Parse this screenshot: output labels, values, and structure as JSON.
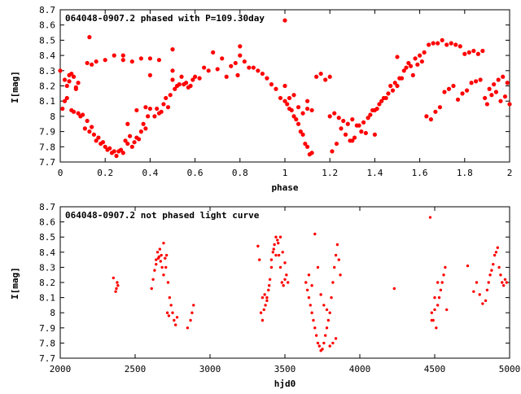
{
  "chart_data": [
    {
      "type": "scatter",
      "title": "064048-0907.2 phased with P=109.30day",
      "xlabel": "phase",
      "ylabel": "I[mag]",
      "xlim": [
        0,
        2
      ],
      "ylim": [
        8.7,
        7.7
      ],
      "y_inverted": true,
      "xticks": [
        0,
        0.2,
        0.4,
        0.6,
        0.8,
        1,
        1.2,
        1.4,
        1.6,
        1.8,
        2
      ],
      "xtick_labels": [
        "0",
        "0.2",
        "0.4",
        "0.6",
        "0.8",
        "1",
        "1.2",
        "1.4",
        "1.6",
        "1.8",
        "2"
      ],
      "yticks": [
        7.7,
        7.8,
        7.9,
        8.0,
        8.1,
        8.2,
        8.3,
        8.4,
        8.5,
        8.6,
        8.7
      ],
      "ytick_labels": [
        "7.7",
        "7.8",
        "7.9",
        "8",
        "8.1",
        "8.2",
        "8.3",
        "8.4",
        "8.5",
        "8.6",
        "8.7"
      ],
      "marker_color": "#ff0000",
      "series": [
        {
          "x": [
            0.0,
            0.01,
            0.02,
            0.03,
            0.04,
            0.05,
            0.06,
            0.07,
            0.08,
            0.09,
            0.02,
            0.04,
            0.06,
            0.08,
            0.03,
            0.05,
            0.07,
            0.1,
            0.11,
            0.12,
            0.13,
            0.14,
            0.15,
            0.16,
            0.17,
            0.18,
            0.19,
            0.2,
            0.21,
            0.22,
            0.23,
            0.24,
            0.25,
            0.26,
            0.27,
            0.28,
            0.29,
            0.3,
            0.31,
            0.32,
            0.33,
            0.34,
            0.35,
            0.36,
            0.37,
            0.38,
            0.39,
            0.4,
            0.12,
            0.14,
            0.16,
            0.2,
            0.24,
            0.28,
            0.32,
            0.36,
            0.4,
            0.44,
            0.13,
            0.34,
            0.38,
            0.42,
            0.43,
            0.44,
            0.45,
            0.46,
            0.47,
            0.48,
            0.49,
            0.5,
            0.51,
            0.52,
            0.53,
            0.54,
            0.55,
            0.56,
            0.57,
            0.58,
            0.59,
            0.6,
            0.62,
            0.64,
            0.66,
            0.68,
            0.7,
            0.72,
            0.74,
            0.76,
            0.78,
            0.8,
            0.79,
            0.82,
            0.84,
            0.86,
            0.88,
            0.9,
            0.92,
            0.94,
            0.96,
            0.98,
            0.5,
            0.5,
            0.4,
            0.28,
            0.3,
            0.8
          ],
          "y": [
            8.3,
            8.05,
            8.1,
            8.2,
            8.27,
            8.04,
            8.03,
            8.18,
            8.02,
            8.0,
            8.24,
            8.23,
            8.26,
            8.22,
            8.12,
            8.28,
            8.19,
            8.01,
            7.92,
            7.97,
            7.9,
            7.93,
            7.88,
            7.84,
            7.86,
            7.82,
            7.83,
            7.8,
            7.78,
            7.79,
            7.76,
            7.77,
            7.74,
            7.77,
            7.78,
            7.76,
            7.84,
            7.82,
            7.87,
            7.8,
            7.83,
            7.86,
            7.85,
            7.9,
            7.95,
            7.92,
            8.0,
            8.05,
            8.35,
            8.34,
            8.36,
            8.37,
            8.4,
            8.37,
            8.36,
            8.38,
            8.38,
            8.37,
            8.52,
            8.04,
            8.06,
            8.0,
            8.05,
            8.02,
            8.03,
            8.08,
            8.12,
            8.06,
            8.14,
            8.24,
            8.18,
            8.2,
            8.21,
            8.26,
            8.21,
            8.22,
            8.19,
            8.2,
            8.24,
            8.26,
            8.25,
            8.32,
            8.3,
            8.42,
            8.31,
            8.38,
            8.26,
            8.33,
            8.35,
            8.46,
            8.27,
            8.36,
            8.32,
            8.32,
            8.3,
            8.28,
            8.25,
            8.21,
            8.18,
            8.12,
            8.44,
            8.3,
            8.27,
            8.4,
            7.95,
            8.4
          ]
        },
        {
          "x": [
            1.0,
            1.01,
            1.02,
            1.03,
            1.04,
            1.05,
            1.06,
            1.07,
            1.08,
            1.09,
            1.1,
            1.11,
            1.12,
            1.0,
            1.02,
            1.04,
            1.06,
            1.08,
            1.1,
            1.12,
            1.14,
            1.16,
            1.18,
            1.2,
            1.22,
            1.24,
            1.26,
            1.28,
            1.3,
            1.32,
            1.34,
            1.36,
            1.38,
            1.4,
            1.42,
            1.44,
            1.46,
            1.48,
            1.5,
            1.52,
            1.54,
            1.56,
            1.58,
            1.6,
            1.62,
            1.64,
            1.66,
            1.68,
            1.7,
            1.72,
            1.74,
            1.76,
            1.78,
            1.8,
            1.82,
            1.84,
            1.86,
            1.88,
            1.9,
            1.92,
            1.94,
            1.96,
            1.98,
            2.0,
            1.21,
            1.23,
            1.25,
            1.27,
            1.29,
            1.31,
            1.33,
            1.35,
            1.37,
            1.39,
            1.41,
            1.43,
            1.45,
            1.47,
            1.49,
            1.51,
            1.53,
            1.55,
            1.57,
            1.59,
            1.61,
            1.63,
            1.65,
            1.67,
            1.69,
            1.71,
            1.73,
            1.75,
            1.77,
            1.79,
            1.81,
            1.83,
            1.85,
            1.87,
            1.89,
            1.91,
            1.93,
            1.95,
            1.97,
            1.99,
            1.0,
            1.1,
            1.2,
            1.3,
            1.4,
            1.5
          ],
          "y": [
            8.63,
            8.08,
            8.05,
            8.04,
            8.0,
            7.98,
            7.95,
            7.9,
            7.88,
            7.82,
            7.8,
            7.75,
            7.76,
            8.1,
            8.12,
            8.14,
            8.06,
            8.02,
            8.05,
            8.04,
            8.26,
            8.28,
            8.24,
            8.26,
            8.02,
            7.99,
            7.97,
            7.95,
            7.98,
            7.94,
            7.9,
            7.89,
            8.01,
            8.04,
            8.08,
            8.12,
            8.15,
            8.17,
            8.2,
            8.25,
            8.32,
            8.33,
            8.38,
            8.4,
            8.42,
            8.47,
            8.48,
            8.48,
            8.5,
            8.47,
            8.48,
            8.47,
            8.46,
            8.41,
            8.42,
            8.43,
            8.41,
            8.43,
            8.08,
            8.14,
            8.16,
            8.1,
            8.13,
            8.08,
            7.77,
            7.82,
            7.92,
            7.88,
            7.84,
            7.86,
            7.94,
            7.96,
            7.99,
            8.04,
            8.05,
            8.1,
            8.12,
            8.2,
            8.22,
            8.25,
            8.3,
            8.35,
            8.27,
            8.34,
            8.36,
            8.0,
            7.98,
            8.03,
            8.06,
            8.16,
            8.18,
            8.2,
            8.11,
            8.15,
            8.17,
            8.22,
            8.23,
            8.24,
            8.12,
            8.18,
            8.21,
            8.24,
            8.26,
            8.22,
            8.2,
            8.1,
            8.0,
            7.84,
            7.88,
            8.39
          ]
        }
      ]
    },
    {
      "type": "scatter",
      "title": "064048-0907.2 not phased light curve",
      "xlabel": "hjd0",
      "ylabel": "I[mag]",
      "xlim": [
        2000,
        5000
      ],
      "ylim": [
        8.7,
        7.7
      ],
      "y_inverted": true,
      "xticks": [
        2000,
        2500,
        3000,
        3500,
        4000,
        4500,
        5000
      ],
      "xtick_labels": [
        "2000",
        "2500",
        "3000",
        "3500",
        "4000",
        "4500",
        "5000"
      ],
      "yticks": [
        7.7,
        7.8,
        7.9,
        8.0,
        8.1,
        8.2,
        8.3,
        8.4,
        8.5,
        8.6,
        8.7
      ],
      "ytick_labels": [
        "7.7",
        "7.8",
        "7.9",
        "8",
        "8.1",
        "8.2",
        "8.3",
        "8.4",
        "8.5",
        "8.6",
        "8.7"
      ],
      "marker_color": "#ff0000",
      "series": [
        {
          "x": [
            2355,
            2370,
            2375,
            2380,
            2385,
            2610,
            2620,
            2630,
            2640,
            2650,
            2660,
            2670,
            2680,
            2690,
            2700,
            2710,
            2720,
            2730,
            2740,
            2750,
            2760,
            2770,
            2780,
            2640,
            2655,
            2665,
            2675,
            2690,
            2705,
            2715,
            2725,
            2850,
            2870,
            2880,
            2890,
            3320,
            3330,
            3340,
            3350,
            3360,
            3370,
            3380,
            3390,
            3400,
            3410,
            3420,
            3430,
            3440,
            3450,
            3460,
            3470,
            3480,
            3490,
            3500,
            3510,
            3520,
            3350,
            3365,
            3380,
            3395,
            3410,
            3425,
            3440,
            3455,
            3470,
            3485,
            3500,
            3640,
            3650,
            3660,
            3670,
            3680,
            3690,
            3700,
            3710,
            3720,
            3730,
            3740,
            3750,
            3760,
            3770,
            3780,
            3790,
            3800,
            3810,
            3820,
            3830,
            3840,
            3850,
            3860,
            3870,
            3660,
            3680,
            3700,
            3720,
            3740,
            3760,
            3780,
            3800,
            3820,
            3840,
            4230,
            4470,
            4480,
            4490,
            4500,
            4510,
            4520,
            4530,
            4540,
            4550,
            4560,
            4570,
            4580,
            4720,
            4760,
            4780,
            4800,
            4820,
            4840,
            4850,
            4860,
            4870,
            4880,
            4890,
            4900,
            4910,
            4920,
            4930,
            4940,
            4950,
            4960,
            4970,
            4980,
            4480,
            4500,
            4520
          ],
          "y": [
            8.23,
            8.14,
            8.16,
            8.2,
            8.18,
            8.16,
            8.22,
            8.28,
            8.35,
            8.4,
            8.37,
            8.34,
            8.3,
            8.25,
            8.36,
            8.38,
            8.2,
            8.1,
            8.05,
            8.0,
            7.95,
            7.92,
            7.97,
            8.32,
            8.36,
            8.42,
            8.38,
            8.46,
            8.3,
            8.0,
            7.98,
            7.9,
            7.95,
            8.0,
            8.05,
            8.44,
            8.35,
            8.0,
            7.95,
            8.02,
            8.05,
            8.1,
            8.15,
            8.22,
            8.3,
            8.4,
            8.45,
            8.5,
            8.48,
            8.38,
            8.3,
            8.2,
            8.18,
            8.22,
            8.25,
            8.2,
            8.1,
            8.12,
            8.08,
            8.18,
            8.35,
            8.42,
            8.38,
            8.46,
            8.5,
            8.4,
            8.33,
            8.2,
            8.15,
            8.1,
            8.05,
            8.0,
            7.95,
            7.9,
            7.85,
            7.8,
            7.78,
            7.75,
            7.76,
            7.8,
            7.85,
            7.9,
            7.95,
            8.0,
            8.1,
            8.2,
            8.3,
            8.38,
            8.45,
            8.35,
            8.25,
            8.25,
            8.18,
            8.52,
            8.3,
            8.12,
            8.05,
            8.02,
            7.78,
            7.8,
            7.83,
            8.16,
            8.63,
            8.0,
            7.95,
            8.02,
            7.9,
            8.05,
            8.1,
            8.15,
            8.2,
            8.25,
            8.3,
            8.02,
            8.31,
            8.14,
            8.2,
            8.12,
            8.06,
            8.08,
            8.15,
            8.2,
            8.25,
            8.28,
            8.32,
            8.38,
            8.4,
            8.43,
            8.3,
            8.25,
            8.2,
            8.18,
            8.22,
            8.2,
            7.95,
            8.1,
            8.2
          ]
        }
      ]
    }
  ]
}
